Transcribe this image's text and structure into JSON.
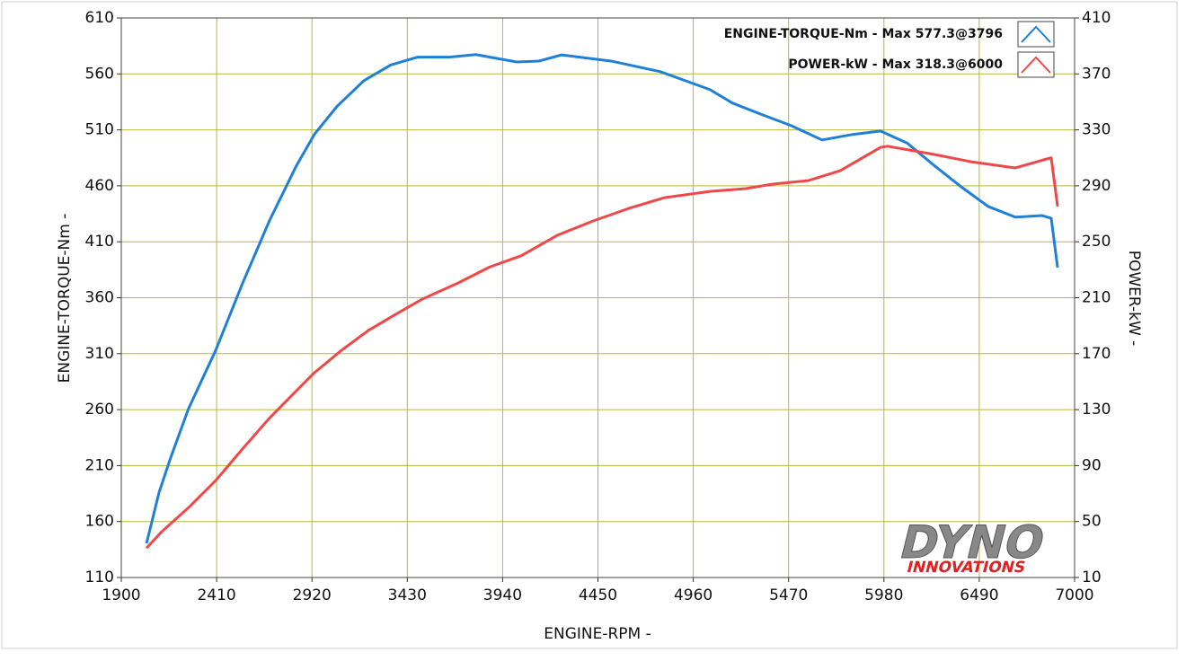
{
  "chart_data": {
    "type": "line",
    "x_label": "ENGINE-RPM -",
    "y_label": "ENGINE-TORQUE-Nm -",
    "y2_label": "POWER-kW -",
    "logo": {
      "top": "DYNO",
      "bottom": "INNOVATIONS"
    },
    "xlim": [
      1900,
      7000
    ],
    "xticks": [
      1900,
      2410,
      2920,
      3430,
      3940,
      4450,
      4960,
      5470,
      5980,
      6490,
      7000
    ],
    "ylim": [
      110,
      610
    ],
    "yticks": [
      110,
      160,
      210,
      260,
      310,
      360,
      410,
      460,
      510,
      560,
      610
    ],
    "y2lim": [
      10,
      410
    ],
    "y2ticks": [
      10,
      50,
      90,
      130,
      170,
      210,
      250,
      290,
      330,
      370,
      410
    ],
    "grid": true,
    "grid_color": "#b8b83c",
    "series": [
      {
        "name": "ENGINE-TORQUE-Nm -  Max 577.3@3796",
        "color": "#1f80d8",
        "axis": "y",
        "x": [
          2035,
          2102,
          2164,
          2260,
          2405,
          2549,
          2693,
          2837,
          2933,
          3054,
          3198,
          3342,
          3486,
          3654,
          3796,
          4015,
          4135,
          4255,
          4520,
          4784,
          5049,
          5169,
          5337,
          5481,
          5649,
          5817,
          5962,
          6106,
          6250,
          6394,
          6538,
          6683,
          6827,
          6875,
          6909
        ],
        "values": [
          140.5,
          186,
          217,
          261,
          313,
          373,
          429,
          478,
          506,
          531,
          554,
          568,
          575,
          575,
          577.3,
          570.7,
          571.5,
          577,
          571.5,
          562,
          546,
          534,
          523,
          514,
          501,
          506,
          509,
          498,
          478,
          459,
          441.5,
          432,
          433.4,
          431,
          387
        ]
      },
      {
        "name": "POWER-kW -  Max 318.3@6000",
        "color": "#f04848",
        "axis": "y2",
        "x": [
          2035,
          2116,
          2260,
          2405,
          2549,
          2693,
          2837,
          2933,
          3078,
          3222,
          3366,
          3510,
          3703,
          3871,
          4039,
          4232,
          4424,
          4616,
          4808,
          5049,
          5241,
          5385,
          5577,
          5746,
          5962,
          6000,
          6250,
          6442,
          6683,
          6851,
          6875,
          6909
        ],
        "values": [
          31,
          42.7,
          60,
          79.3,
          102,
          124,
          143.5,
          156.4,
          172.4,
          186.6,
          198,
          209,
          220.6,
          232,
          240,
          254.6,
          264.9,
          273.9,
          281.6,
          286,
          288,
          291.2,
          293.8,
          300.8,
          317.5,
          318.3,
          312.4,
          307.3,
          302.8,
          309.2,
          310,
          275.2
        ]
      }
    ]
  }
}
